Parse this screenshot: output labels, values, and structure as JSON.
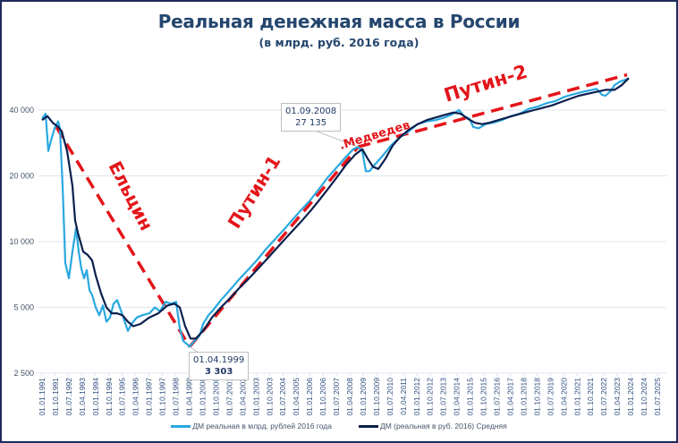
{
  "title": "Реальная денежная масса в России",
  "subtitle": "(в млрд. руб. 2016 года)",
  "colors": {
    "raw": "#29a8e0",
    "avg": "#0b1f4d",
    "trend": "#e3151a",
    "title": "#24466e",
    "grid": "#dce6f2"
  },
  "callouts": [
    {
      "date": "01.04.1999",
      "value": "3 303"
    },
    {
      "date": "01.09.2008",
      "value": "27 135"
    }
  ],
  "annotations": [
    {
      "label": "Ельцин"
    },
    {
      "label": "Путин-1"
    },
    {
      "label": ".Медведев"
    },
    {
      "label": "Путин-2"
    }
  ],
  "legend": [
    {
      "label": "ДМ реальная в млрд. рублей 2016 года",
      "color": "#29a8e0"
    },
    {
      "label": "ДМ (реальная в руб. 2016) Средняя",
      "color": "#0b1f4d"
    }
  ],
  "chart_data": {
    "type": "line",
    "title": "Реальная денежная масса в России",
    "subtitle": "(в млрд. руб. 2016 года)",
    "xlabel": "",
    "ylabel": "",
    "yscale": "log",
    "ylim": [
      2500,
      50000
    ],
    "yticks": [
      2500,
      5000,
      10000,
      20000,
      40000
    ],
    "ytick_labels": [
      "2 500",
      "5 000",
      "10 000",
      "20 000",
      "40 000"
    ],
    "grid": true,
    "legend_position": "bottom",
    "xtick_labels": [
      "01.01.1991",
      "01.10.1991",
      "01.07.1992",
      "01.04.1993",
      "01.01.1994",
      "01.10.1994",
      "01.07.1995",
      "01.04.1996",
      "01.01.1997",
      "01.10.1997",
      "01.07.1998",
      "01.04.1999",
      "01.01.2000",
      "01.10.2000",
      "01.07.2001",
      "01.04.2002",
      "01.01.2003",
      "01.10.2003",
      "01.07.2004",
      "01.04.2005",
      "01.01.2006",
      "01.10.2006",
      "01.07.2007",
      "01.04.2008",
      "01.01.2009",
      "01.10.2009",
      "01.07.2010",
      "01.04.2011",
      "01.01.2012",
      "01.10.2012",
      "01.07.2013",
      "01.04.2014",
      "01.01.2015",
      "01.10.2015",
      "01.07.2016",
      "01.04.2017",
      "01.01.2018",
      "01.10.2018",
      "01.07.2019",
      "01.04.2020",
      "01.01.2021",
      "01.10.2021",
      "01.07.2022",
      "01.04.2023",
      "01.01.2024",
      "01.10.2024",
      "01.07.2025"
    ],
    "series": [
      {
        "name": "ДМ реальная в млрд. рублей 2016 года",
        "x": [
          1991.0,
          1991.2,
          1991.35,
          1991.5,
          1991.7,
          1991.9,
          1992.0,
          1992.15,
          1992.3,
          1992.5,
          1992.7,
          1992.9,
          1993.05,
          1993.2,
          1993.35,
          1993.5,
          1993.65,
          1993.8,
          1994.0,
          1994.2,
          1994.4,
          1994.6,
          1994.8,
          1995.0,
          1995.2,
          1995.5,
          1995.8,
          1996.0,
          1996.3,
          1996.6,
          1997.0,
          1997.3,
          1997.6,
          1997.9,
          1998.2,
          1998.5,
          1998.7,
          1998.9,
          1999.1,
          1999.25,
          1999.5,
          1999.8,
          2000.0,
          2000.3,
          2000.6,
          2001.0,
          2001.5,
          2002.0,
          2002.5,
          2003.0,
          2003.5,
          2004.0,
          2004.5,
          2005.0,
          2005.5,
          2006.0,
          2006.5,
          2007.0,
          2007.5,
          2008.0,
          2008.4,
          2008.67,
          2008.9,
          2009.1,
          2009.3,
          2009.6,
          2010.0,
          2010.5,
          2011.0,
          2011.5,
          2012.0,
          2012.5,
          2013.0,
          2013.5,
          2014.0,
          2014.3,
          2014.6,
          2014.9,
          2015.1,
          2015.4,
          2015.8,
          2016.2,
          2016.7,
          2017.2,
          2017.7,
          2018.2,
          2018.7,
          2019.2,
          2019.7,
          2020.2,
          2020.6,
          2021.0,
          2021.5,
          2022.0,
          2022.3,
          2022.5,
          2022.8,
          2023.0,
          2023.3,
          2023.6,
          2023.8
        ],
        "values": [
          36500,
          38500,
          26000,
          29000,
          33000,
          35500,
          33000,
          18000,
          8000,
          6800,
          9000,
          11500,
          9000,
          7500,
          6800,
          7400,
          6000,
          5700,
          5000,
          4600,
          5100,
          4300,
          4500,
          5200,
          5400,
          4600,
          3900,
          4200,
          4500,
          4600,
          4700,
          5000,
          4800,
          5300,
          5200,
          5300,
          4000,
          3500,
          3400,
          3303,
          3500,
          3700,
          4200,
          4600,
          4900,
          5400,
          6000,
          6700,
          7400,
          8200,
          9200,
          10200,
          11300,
          12600,
          14000,
          15500,
          17500,
          19800,
          22000,
          24500,
          26500,
          27135,
          26000,
          21000,
          21000,
          22500,
          24500,
          27500,
          30000,
          32000,
          34500,
          35500,
          36000,
          37000,
          38500,
          40000,
          37500,
          36500,
          33500,
          33000,
          34500,
          35000,
          36000,
          37500,
          38500,
          40500,
          41500,
          43000,
          44000,
          46000,
          47000,
          48000,
          49000,
          50000,
          47000,
          46500,
          49000,
          52000,
          54000,
          55000,
          56000
        ]
      },
      {
        "name": "ДМ (реальная в руб. 2016) Средняя",
        "x": [
          1991.0,
          1991.3,
          1991.6,
          1991.9,
          1992.1,
          1992.4,
          1992.7,
          1992.85,
          1993.0,
          1993.3,
          1993.55,
          1993.8,
          1994.0,
          1994.3,
          1994.6,
          1994.9,
          1995.2,
          1995.5,
          1995.8,
          1996.1,
          1996.5,
          1997.0,
          1997.5,
          1998.0,
          1998.4,
          1998.7,
          1999.0,
          1999.3,
          1999.6,
          2000.0,
          2000.5,
          2001.0,
          2001.5,
          2002.0,
          2002.5,
          2003.0,
          2003.5,
          2004.0,
          2004.5,
          2005.0,
          2005.5,
          2006.0,
          2006.5,
          2007.0,
          2007.5,
          2008.0,
          2008.5,
          2008.9,
          2009.2,
          2009.5,
          2009.8,
          2010.2,
          2010.6,
          2011.0,
          2011.5,
          2012.0,
          2012.5,
          2013.0,
          2013.5,
          2014.0,
          2014.4,
          2014.8,
          2015.2,
          2015.6,
          2016.0,
          2016.5,
          2017.0,
          2017.5,
          2018.0,
          2018.5,
          2019.0,
          2019.5,
          2020.0,
          2020.5,
          2021.0,
          2021.5,
          2022.0,
          2022.5,
          2023.0,
          2023.4,
          2023.8
        ],
        "values": [
          36000,
          37500,
          35000,
          33500,
          32000,
          26000,
          18000,
          12500,
          11000,
          9000,
          8700,
          8200,
          7000,
          5800,
          5000,
          4700,
          4700,
          4600,
          4300,
          4100,
          4200,
          4500,
          4700,
          5100,
          5200,
          5000,
          4100,
          3600,
          3600,
          3900,
          4500,
          5000,
          5500,
          6100,
          6700,
          7400,
          8200,
          9100,
          10100,
          11200,
          12400,
          13800,
          15500,
          17500,
          19800,
          22500,
          25000,
          26500,
          24000,
          22000,
          21500,
          24000,
          27500,
          30000,
          32500,
          34500,
          36000,
          37000,
          38000,
          39000,
          38500,
          36500,
          35000,
          34500,
          35000,
          36000,
          37000,
          38000,
          39000,
          40000,
          41000,
          42000,
          43500,
          45000,
          46500,
          47500,
          48500,
          49500,
          49500,
          52000,
          56000
        ]
      },
      {
        "name": "Trend: Ельцин",
        "x": [
          1991.8,
          1999.25
        ],
        "values": [
          33500,
          3303
        ]
      },
      {
        "name": "Trend: Путин-1",
        "x": [
          1999.25,
          2008.67
        ],
        "values": [
          3303,
          27135
        ]
      },
      {
        "name": "Trend: Медведев / Путин-2",
        "x": [
          2008.67,
          2023.7
        ],
        "values": [
          27135,
          58000
        ]
      }
    ],
    "annotations": [
      {
        "text": "01.04.1999\n3 303",
        "x": 1999.25,
        "y": 3303
      },
      {
        "text": "01.09.2008\n27 135",
        "x": 2008.67,
        "y": 27135
      },
      {
        "text": "Ельцин"
      },
      {
        "text": "Путин-1"
      },
      {
        "text": ".Медведев"
      },
      {
        "text": "Путин-2"
      }
    ]
  }
}
